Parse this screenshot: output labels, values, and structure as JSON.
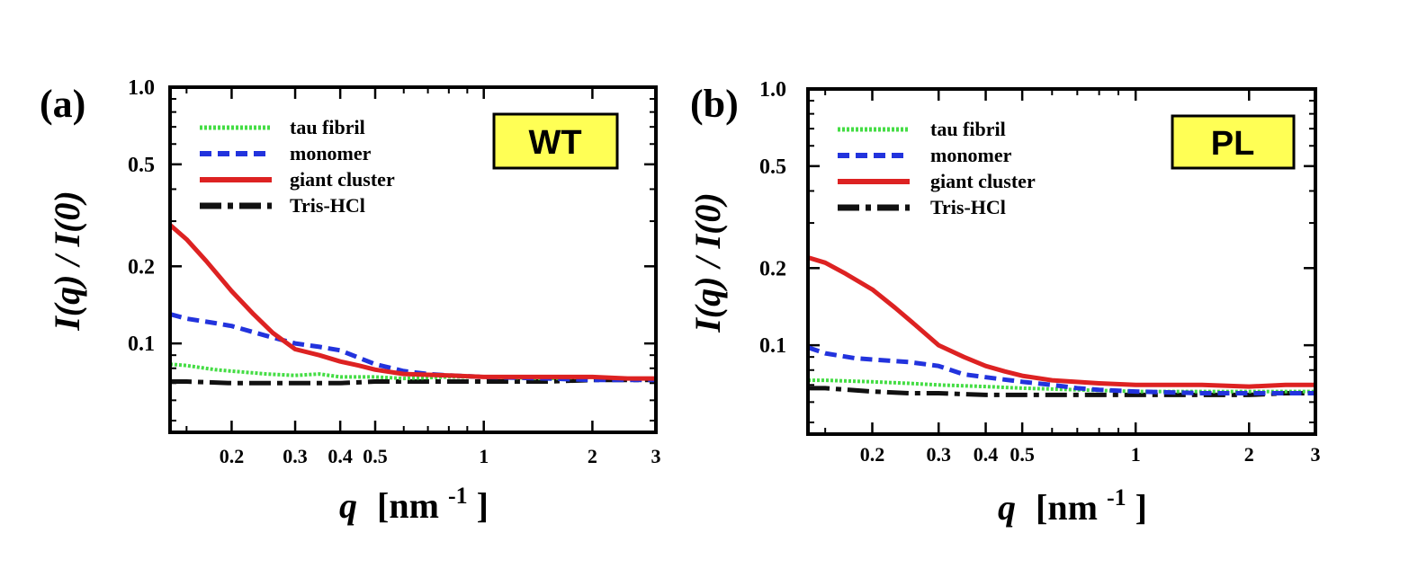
{
  "chart_data": [
    {
      "type": "line",
      "panel_label": "(a)",
      "badge": "WT",
      "xlabel_var": "q",
      "xlabel_unit": "[nm",
      "xlabel_exp": "-1",
      "xlabel_close": "]",
      "ylabel": "I(q) / I(0)",
      "xscale": "log",
      "yscale": "log",
      "xlim": [
        0.135,
        3.0
      ],
      "ylim": [
        0.045,
        1.0
      ],
      "xticks": [
        0.2,
        0.3,
        0.4,
        0.5,
        1,
        2,
        3
      ],
      "xtick_labels": [
        "0.2",
        "0.3",
        "0.4",
        "0.5",
        "1",
        "2",
        "3"
      ],
      "yticks": [
        0.1,
        0.2,
        0.5,
        1.0
      ],
      "ytick_labels": [
        "0.1",
        "0.2",
        "0.5",
        "1.0"
      ],
      "legend": [
        "tau fibril",
        "monomer",
        "giant cluster",
        "Tris-HCl"
      ],
      "series": [
        {
          "name": "tau fibril",
          "color": "#44dd44",
          "style": "dotted",
          "x": [
            0.135,
            0.15,
            0.18,
            0.2,
            0.25,
            0.3,
            0.35,
            0.4,
            0.5,
            0.6,
            0.8,
            1.0,
            1.5,
            2.0,
            2.5,
            3.0
          ],
          "y": [
            0.083,
            0.082,
            0.079,
            0.078,
            0.076,
            0.075,
            0.076,
            0.074,
            0.074,
            0.073,
            0.074,
            0.074,
            0.073,
            0.074,
            0.073,
            0.073
          ]
        },
        {
          "name": "monomer",
          "color": "#2233dd",
          "style": "dashed",
          "x": [
            0.135,
            0.15,
            0.18,
            0.2,
            0.25,
            0.3,
            0.35,
            0.4,
            0.45,
            0.5,
            0.6,
            0.7,
            0.8,
            1.0,
            1.5,
            2.0,
            2.5,
            3.0
          ],
          "y": [
            0.13,
            0.125,
            0.12,
            0.117,
            0.107,
            0.1,
            0.097,
            0.094,
            0.088,
            0.083,
            0.078,
            0.076,
            0.075,
            0.074,
            0.073,
            0.072,
            0.072,
            0.072
          ]
        },
        {
          "name": "giant cluster",
          "color": "#dd2222",
          "style": "solid",
          "x": [
            0.135,
            0.15,
            0.17,
            0.2,
            0.23,
            0.26,
            0.3,
            0.35,
            0.4,
            0.45,
            0.5,
            0.6,
            0.8,
            1.0,
            1.5,
            2.0,
            2.5,
            3.0
          ],
          "y": [
            0.29,
            0.255,
            0.21,
            0.16,
            0.13,
            0.11,
            0.095,
            0.09,
            0.085,
            0.082,
            0.079,
            0.076,
            0.075,
            0.074,
            0.074,
            0.074,
            0.073,
            0.073
          ]
        },
        {
          "name": "Tris-HCl",
          "color": "#111111",
          "style": "dashdot",
          "x": [
            0.135,
            0.15,
            0.2,
            0.25,
            0.3,
            0.4,
            0.5,
            0.7,
            1.0,
            1.5,
            2.0,
            2.5,
            3.0
          ],
          "y": [
            0.071,
            0.071,
            0.07,
            0.07,
            0.07,
            0.07,
            0.071,
            0.071,
            0.071,
            0.071,
            0.072,
            0.072,
            0.072
          ]
        }
      ]
    },
    {
      "type": "line",
      "panel_label": "(b)",
      "badge": "PL",
      "xlabel_var": "q",
      "xlabel_unit": "[nm",
      "xlabel_exp": "-1",
      "xlabel_close": "]",
      "ylabel": "I(q) / I(0)",
      "xscale": "log",
      "yscale": "log",
      "xlim": [
        0.135,
        3.0
      ],
      "ylim": [
        0.045,
        1.0
      ],
      "xticks": [
        0.2,
        0.3,
        0.4,
        0.5,
        1,
        2,
        3
      ],
      "xtick_labels": [
        "0.2",
        "0.3",
        "0.4",
        "0.5",
        "1",
        "2",
        "3"
      ],
      "yticks": [
        0.1,
        0.2,
        0.5,
        1.0
      ],
      "ytick_labels": [
        "0.1",
        "0.2",
        "0.5",
        "1.0"
      ],
      "legend": [
        "tau fibril",
        "monomer",
        "giant cluster",
        "Tris-HCl"
      ],
      "series": [
        {
          "name": "tau fibril",
          "color": "#44dd44",
          "style": "dotted",
          "x": [
            0.135,
            0.15,
            0.2,
            0.25,
            0.3,
            0.4,
            0.5,
            0.7,
            1.0,
            1.5,
            2.0,
            2.5,
            3.0
          ],
          "y": [
            0.073,
            0.073,
            0.072,
            0.071,
            0.07,
            0.069,
            0.068,
            0.067,
            0.066,
            0.066,
            0.066,
            0.066,
            0.066
          ]
        },
        {
          "name": "monomer",
          "color": "#2233dd",
          "style": "dashed",
          "x": [
            0.135,
            0.15,
            0.18,
            0.2,
            0.25,
            0.3,
            0.35,
            0.4,
            0.5,
            0.6,
            0.7,
            0.8,
            1.0,
            1.5,
            2.0,
            2.5,
            3.0
          ],
          "y": [
            0.098,
            0.093,
            0.089,
            0.088,
            0.086,
            0.083,
            0.077,
            0.075,
            0.072,
            0.07,
            0.068,
            0.067,
            0.066,
            0.065,
            0.065,
            0.065,
            0.065
          ]
        },
        {
          "name": "giant cluster",
          "color": "#dd2222",
          "style": "solid",
          "x": [
            0.135,
            0.15,
            0.17,
            0.2,
            0.23,
            0.26,
            0.3,
            0.35,
            0.4,
            0.45,
            0.5,
            0.6,
            0.8,
            1.0,
            1.5,
            2.0,
            2.5,
            3.0
          ],
          "y": [
            0.22,
            0.21,
            0.19,
            0.165,
            0.14,
            0.12,
            0.1,
            0.09,
            0.083,
            0.079,
            0.076,
            0.073,
            0.071,
            0.07,
            0.07,
            0.069,
            0.07,
            0.07
          ]
        },
        {
          "name": "Tris-HCl",
          "color": "#111111",
          "style": "dashdot",
          "x": [
            0.135,
            0.15,
            0.2,
            0.25,
            0.3,
            0.4,
            0.5,
            0.7,
            1.0,
            1.5,
            2.0,
            2.5,
            3.0
          ],
          "y": [
            0.068,
            0.068,
            0.066,
            0.065,
            0.065,
            0.064,
            0.064,
            0.064,
            0.064,
            0.064,
            0.064,
            0.065,
            0.065
          ]
        }
      ]
    }
  ]
}
